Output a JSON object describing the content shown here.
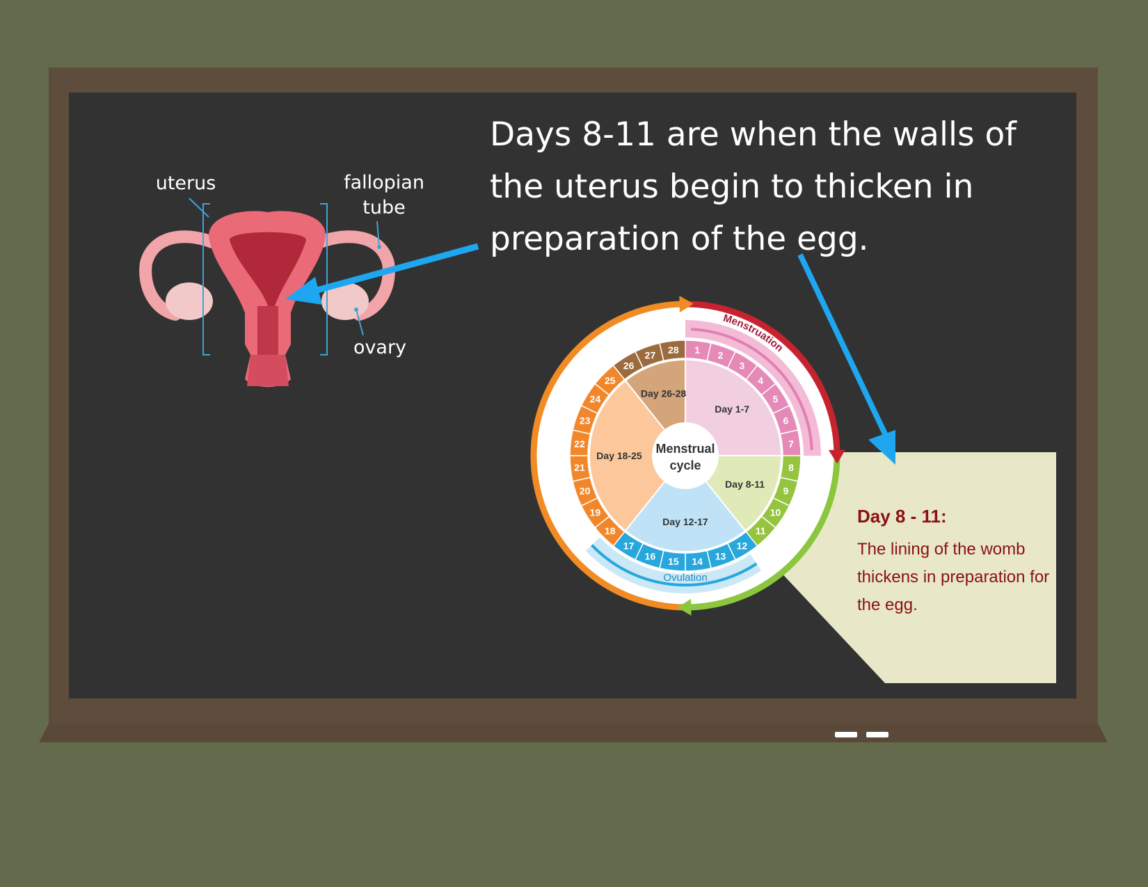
{
  "heading": "Days 8-11 are when the walls of the uterus begin to thicken in preparation of the egg.",
  "anatomy": {
    "labels": {
      "uterus": "uterus",
      "fallopian_tube": "fallopian tube",
      "ovary": "ovary"
    }
  },
  "cycle": {
    "center_line1": "Menstrual",
    "center_line2": "cycle",
    "phases": [
      {
        "label": "Day 1-7",
        "start_day": 1,
        "end_day": 7,
        "color": "#f1cfe0"
      },
      {
        "label": "Day 8-11",
        "start_day": 8,
        "end_day": 11,
        "color": "#dfeab8"
      },
      {
        "label": "Day 12-17",
        "start_day": 12,
        "end_day": 17,
        "color": "#bfe2f6"
      },
      {
        "label": "Day 18-25",
        "start_day": 18,
        "end_day": 25,
        "color": "#fcc79a"
      },
      {
        "label": "Day 26-28",
        "start_day": 26,
        "end_day": 28,
        "color": "#d4a47b"
      }
    ],
    "days": [
      "1",
      "2",
      "3",
      "4",
      "5",
      "6",
      "7",
      "8",
      "9",
      "10",
      "11",
      "12",
      "13",
      "14",
      "15",
      "16",
      "17",
      "18",
      "19",
      "20",
      "21",
      "22",
      "23",
      "24",
      "25",
      "26",
      "27",
      "28"
    ],
    "day_colors": {
      "menstruation": "#e589b7",
      "growth": "#95c441",
      "ovulation": "#27a7dc",
      "luteal": "#f1872a",
      "premenstrual": "#9c6b3d"
    },
    "menstruation_label": "Menstruation",
    "ovulation_label": "Ovulation"
  },
  "info_box": {
    "title": "Day 8 - 11:",
    "body": "The lining of the womb thickens in preparation for the egg."
  },
  "colors": {
    "board": "#323232",
    "frame": "#5e4c3c",
    "wall": "#646a4c",
    "arrow": "#1ea7f0",
    "box": "#e8e8c8"
  }
}
